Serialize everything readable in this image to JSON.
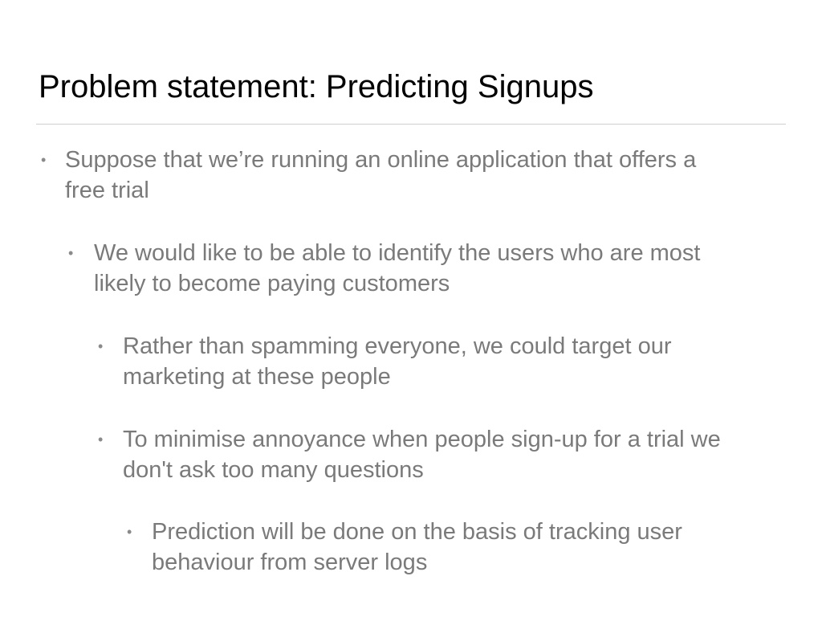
{
  "slide": {
    "title": "Problem statement: Predicting Signups",
    "bullet_glyph": "•",
    "bullets": [
      {
        "level": 1,
        "lines": [
          "Suppose that we’re running an online application that offers a",
          "free trial"
        ]
      },
      {
        "level": 2,
        "lines": [
          "We would like to be able to identify the users who are most",
          "likely to become paying customers"
        ]
      },
      {
        "level": 3,
        "lines": [
          "Rather than spamming everyone, we could target our",
          "marketing at these people"
        ]
      },
      {
        "level": 3,
        "lines": [
          "To minimise annoyance when people sign-up for a trial we",
          "don't ask too many questions"
        ]
      },
      {
        "level": 4,
        "lines": [
          "Prediction will be done on the basis of tracking user",
          "behaviour from server logs"
        ]
      }
    ]
  },
  "colors": {
    "title": "#000000",
    "body_text": "#7a7a7a",
    "rule": "#cfcfcf",
    "background": "#ffffff"
  }
}
